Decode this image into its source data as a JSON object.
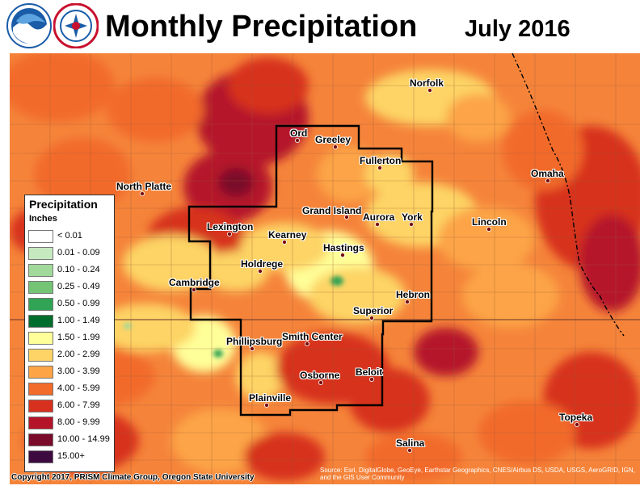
{
  "header": {
    "title": "Monthly Precipitation",
    "date": "July 2016",
    "logos": [
      {
        "name": "noaa-logo",
        "text": "NOAA",
        "color": "#1a5ca8"
      },
      {
        "name": "nws-logo",
        "text": "NATIONAL WEATHER SERVICE",
        "color": "#c8102e"
      }
    ]
  },
  "legend": {
    "title": "Precipitation",
    "units": "Inches",
    "items": [
      {
        "label": "< 0.01",
        "color": "#ffffff"
      },
      {
        "label": "0.01 - 0.09",
        "color": "#c7e9c0"
      },
      {
        "label": "0.10 - 0.24",
        "color": "#a1d99b"
      },
      {
        "label": "0.25 - 0.49",
        "color": "#74c476"
      },
      {
        "label": "0.50 - 0.99",
        "color": "#31a354"
      },
      {
        "label": "1.00 - 1.49",
        "color": "#006d2c"
      },
      {
        "label": "1.50 - 1.99",
        "color": "#ffff99"
      },
      {
        "label": "2.00 - 2.99",
        "color": "#fdd465"
      },
      {
        "label": "3.00 - 3.99",
        "color": "#fca446"
      },
      {
        "label": "4.00 - 5.99",
        "color": "#f26b2a"
      },
      {
        "label": "6.00 - 7.99",
        "color": "#d7301f"
      },
      {
        "label": "8.00 - 9.99",
        "color": "#b5132a"
      },
      {
        "label": "10.00 - 14.99",
        "color": "#7a0b2a"
      },
      {
        "label": "15.00+",
        "color": "#3d0a3f"
      }
    ]
  },
  "cities": [
    {
      "name": "Norfolk"
    },
    {
      "name": "Ord"
    },
    {
      "name": "Greeley"
    },
    {
      "name": "Fullerton"
    },
    {
      "name": "North Platte"
    },
    {
      "name": "Omaha"
    },
    {
      "name": "Grand Island"
    },
    {
      "name": "Aurora"
    },
    {
      "name": "York"
    },
    {
      "name": "Lexington"
    },
    {
      "name": "Lincoln"
    },
    {
      "name": "Kearney"
    },
    {
      "name": "Hastings"
    },
    {
      "name": "Holdrege"
    },
    {
      "name": "Cambridge"
    },
    {
      "name": "Hebron"
    },
    {
      "name": "Superior"
    },
    {
      "name": "Phillipsburg"
    },
    {
      "name": "Smith Center"
    },
    {
      "name": "Osborne"
    },
    {
      "name": "Beloit"
    },
    {
      "name": "Plainville"
    },
    {
      "name": "Topeka"
    },
    {
      "name": "Salina"
    }
  ],
  "footer": {
    "copyright": "Copyright 2017, PRISM Climate Group, Oregon State University",
    "source": "Source: Esri, DigitalGlobe, GeoEye, Earthstar Geographics, CNES/Airbus DS, USDA, USGS, AeroGRID, IGN, and the GIS User Community"
  }
}
